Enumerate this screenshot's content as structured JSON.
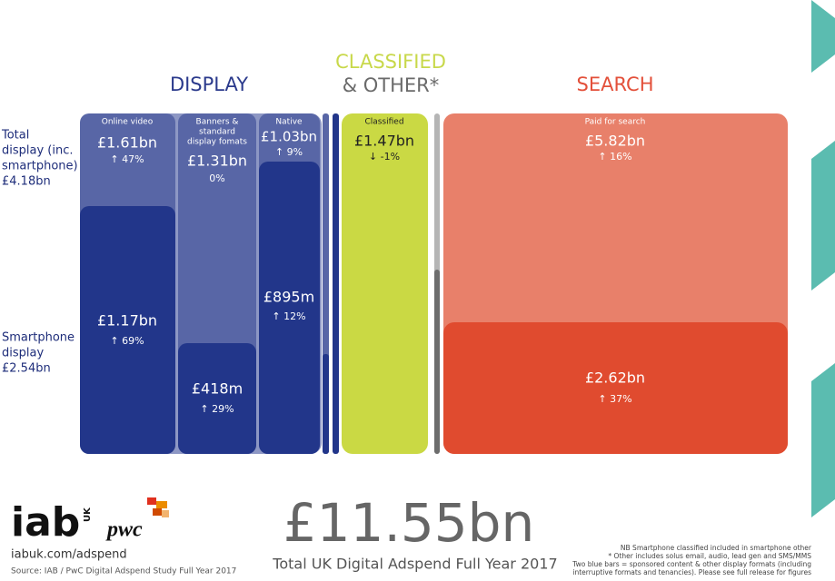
{
  "headers": {
    "display": "DISPLAY",
    "classified_1": "CLASSIFIED",
    "classified_2": "& OTHER*",
    "search": "SEARCH"
  },
  "row_labels": {
    "total": [
      "Total",
      "display (inc.",
      "smartphone)",
      "£4.18bn"
    ],
    "smartphone": [
      "Smartphone",
      "display",
      "£2.54bn"
    ]
  },
  "blocks": {
    "online_video": {
      "label": "Online video",
      "total": "£1.61bn",
      "total_change": "↑ 47%",
      "smartphone": "£1.17bn",
      "smartphone_change": "↑ 69%"
    },
    "banners": {
      "label": [
        "Banners &",
        "standard",
        "display fomats"
      ],
      "total": "£1.31bn",
      "total_change": "0%",
      "smartphone": "£418m",
      "smartphone_change": "↑ 29%"
    },
    "native": {
      "label": "Native",
      "total": "£1.03bn",
      "total_change": "↑ 9%",
      "smartphone": "£895m",
      "smartphone_change": "↑ 12%"
    },
    "classified": {
      "label": "Classified",
      "total": "£1.47bn",
      "total_change": "↓ -1%"
    },
    "search": {
      "label": "Paid for search",
      "total": "£5.82bn",
      "total_change": "↑ 16%",
      "smartphone": "£2.62bn",
      "smartphone_change": "↑ 37%"
    }
  },
  "footer": {
    "total": "£11.55bn",
    "total_caption": "Total UK Digital Adspend Full Year 2017",
    "url": "iabuk.com/adspend",
    "source": "Source: IAB / PwC Digital Adspend Study Full Year 2017",
    "logo_iab": "iab",
    "logo_uk": "UK",
    "logo_pwc": "pwc",
    "notes": [
      "NB Smartphone classified included in smartphone other",
      "* Other includes solus email, audio, lead gen and SMS/MMS",
      "Two blue bars = sponsored content & other display formats (including",
      "interruptive formats and tenancies). Please see full release for figures"
    ]
  }
}
